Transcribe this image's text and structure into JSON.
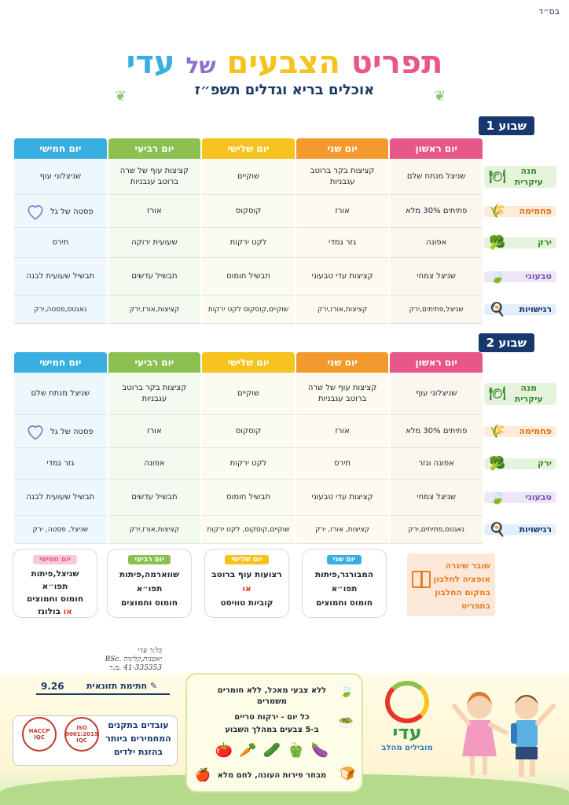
{
  "header": {
    "bsd": "בס״ד",
    "title_parts": [
      "תפריט",
      "הצבעים",
      "של",
      "עדי"
    ],
    "subtitle": "אוכלים בריא וגדלים תשפ״ז"
  },
  "days": [
    "יום ראשון",
    "יום שני",
    "יום שלישי",
    "יום רביעי",
    "יום חמישי"
  ],
  "categories": [
    {
      "label": "מנה עיקרית",
      "icon": "cloche-icon"
    },
    {
      "label": "פחמימה",
      "icon": "wheat-icon"
    },
    {
      "label": "ירק",
      "icon": "broccoli-icon"
    },
    {
      "label": "טבעוני",
      "icon": "leaf-icon"
    },
    {
      "label": "רגישויות",
      "icon": "chef-hat-icon"
    }
  ],
  "weeks": [
    {
      "label": "שבוע 1",
      "rows": [
        [
          "שניצל מנתח שלם",
          "קציצות בקר ברוטב עגבניות",
          "שוקיים",
          "קציצות עוף של שרה ברוטב עגבניות",
          "שניצלוני עוף"
        ],
        [
          "פתיתים 30% מלא",
          "אורז",
          "קוסקוס",
          "אורז",
          "פסטה של גל"
        ],
        [
          "אפונה",
          "גזר גמדי",
          "לקט ירקות",
          "שעועית ירוקה",
          "תירס"
        ],
        [
          "שניצל צמחי",
          "קציצות עדי טבעוני",
          "תבשיל חומוס",
          "תבשיל עדשים",
          "תבשיל שעועית לבנה"
        ],
        [
          "שניצל,פתיתים,ירק",
          "קציצות,אורז,ירק",
          "שוקיים,קוסקוס לקט ירקות",
          "קציצות,אורז,ירק",
          "נאגטס,פסטה,ירק"
        ]
      ]
    },
    {
      "label": "שבוע 2",
      "rows": [
        [
          "שניצלוני עוף",
          "קציצות עוף של שרה ברוטב עגבניות",
          "שוקיים",
          "קציצות בקר ברוטב עגבניות",
          "שניצל מנתח שלם"
        ],
        [
          "פתיתים 30% מלא",
          "אורז",
          "קוסקוס",
          "אורז",
          "פסטה של גל"
        ],
        [
          "אפונה וגזר",
          "תירס",
          "לקט ירקות",
          "אפונה",
          "גזר גמדי"
        ],
        [
          "שניצל צמחי",
          "קציצות עדי טבעוני",
          "תבשיל חומוס",
          "תבשיל עדשים",
          "תבשיל שעועית לבנה"
        ],
        [
          "נאגטס,פתיתים,ירק",
          "קציצות, אורז, ירק",
          "שוקיים,קוסקוס, לקט ירקות",
          "קציצות,אורז,ירק",
          "שניצל, פסטה, ירק"
        ]
      ]
    }
  ],
  "snacks": [
    {
      "day": "יום שני",
      "lines": [
        "המבורגר,פיתות",
        "תפו״א",
        "חומוס וחמוצים"
      ],
      "or_line": ""
    },
    {
      "day": "יום שלישי",
      "lines": [
        "רצועות עוף ברוטב"
      ],
      "or_line": "או",
      "after": [
        "קוביות טוויסט"
      ]
    },
    {
      "day": "יום רביעי",
      "lines": [
        "שווארמה,פיתות",
        "תפו״א",
        "חומוס וחמוצים"
      ],
      "or_line": ""
    },
    {
      "day": "יום חמישי",
      "lines": [
        "שניצל,פיתות",
        "תפו״א",
        "חומוס וחמוצים"
      ],
      "or_line": "או",
      "or_suffix": "בולונז"
    }
  ],
  "sugar": {
    "lines": [
      "שובר שיגרה",
      "אופציה לחלבון",
      "במקום החלבון",
      "בתפריט"
    ]
  },
  "signature": {
    "lines": [
      "בל:ך עדי",
      "יאטנית,קליניה .BSc",
      "41-335353 .מ.ר"
    ]
  },
  "date": "9.26",
  "nutritionist_label": "חתימת תזונאית",
  "certs": [
    "HACCP IQC",
    "ISO 9001:2015 IQC"
  ],
  "cert_text": [
    "עובדים בתקנים",
    "המחמירים ביותר",
    "בהזנת ילדים"
  ],
  "principles": [
    "ללא צבעי מאכל, ללא חומרים משמרים",
    "כל יום - ירקות טריים",
    "ב-5 צבעים במהלך השבוע",
    "מבחר פירות העונה, לחם מלא"
  ],
  "logo": {
    "name": "עדי",
    "slogan": "מובילים מהלב"
  },
  "colors": {
    "sun": "#e8578a",
    "mon": "#f29a2e",
    "tue": "#f6c21d",
    "wed": "#8cc152",
    "thu": "#39aee0",
    "navy": "#16386e"
  }
}
